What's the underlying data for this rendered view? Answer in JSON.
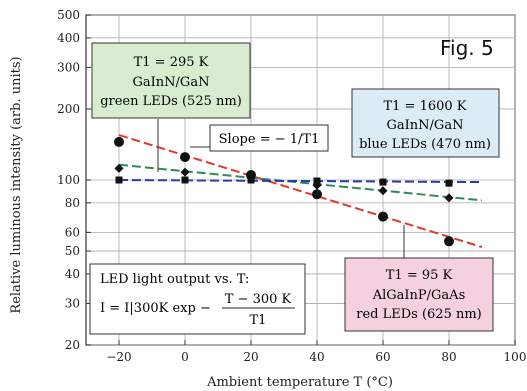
{
  "fig_label": "Fig. 5",
  "chart_data": {
    "type": "scatter",
    "title": "",
    "xlabel": "Ambient temperature  T (°C)",
    "ylabel": "Relative luminous intensity  (arb. units)",
    "xlim": [
      -30,
      100
    ],
    "ylim": [
      20,
      500
    ],
    "y_scale": "log",
    "grid": true,
    "x_ticks": [
      -20,
      0,
      20,
      40,
      60,
      80,
      100
    ],
    "y_ticks": [
      20,
      30,
      40,
      50,
      60,
      80,
      100,
      200,
      300,
      400,
      500
    ],
    "series": [
      {
        "marker": "circle",
        "color": "#e03a2f",
        "x": [
          -20,
          0,
          20,
          40,
          60,
          80
        ],
        "y": [
          145,
          125,
          105,
          87,
          70,
          55
        ],
        "fit": {
          "x": [
            -20,
            90
          ],
          "y": [
            155,
            52
          ]
        }
      },
      {
        "marker": "diamond",
        "color": "#2e8b57",
        "x": [
          -20,
          0,
          20,
          40,
          60,
          80
        ],
        "y": [
          112,
          108,
          102,
          95,
          90,
          84
        ],
        "fit": {
          "x": [
            -20,
            90
          ],
          "y": [
            116,
            82
          ]
        }
      },
      {
        "marker": "square",
        "color": "#2b3aa8",
        "x": [
          -20,
          0,
          20,
          40,
          60,
          80
        ],
        "y": [
          100,
          100,
          100,
          99,
          98,
          97
        ],
        "fit": {
          "x": [
            -20,
            90
          ],
          "y": [
            100,
            98
          ]
        }
      }
    ]
  },
  "annotations": {
    "green": {
      "line1": "T1 = 295 K",
      "line2": "GaInN/GaN",
      "line3": "green LEDs (525 nm)",
      "color": "#d8ecd0"
    },
    "blue": {
      "line1": "T1 = 1600 K",
      "line2": "GaInN/GaN",
      "line3": "blue LEDs (470 nm)",
      "color": "#dcecf5"
    },
    "red": {
      "line1": "T1 = 95 K",
      "line2": "AlGaInP/GaAs",
      "line3": "red LEDs (625 nm)",
      "color": "#f5d0de"
    },
    "slope": {
      "text": "Slope = − 1/T1"
    },
    "formula": {
      "line1": "LED light output vs. T:",
      "lhs": "I = I|300K  exp −",
      "numerator": "T − 300 K",
      "denominator": "T1"
    }
  }
}
